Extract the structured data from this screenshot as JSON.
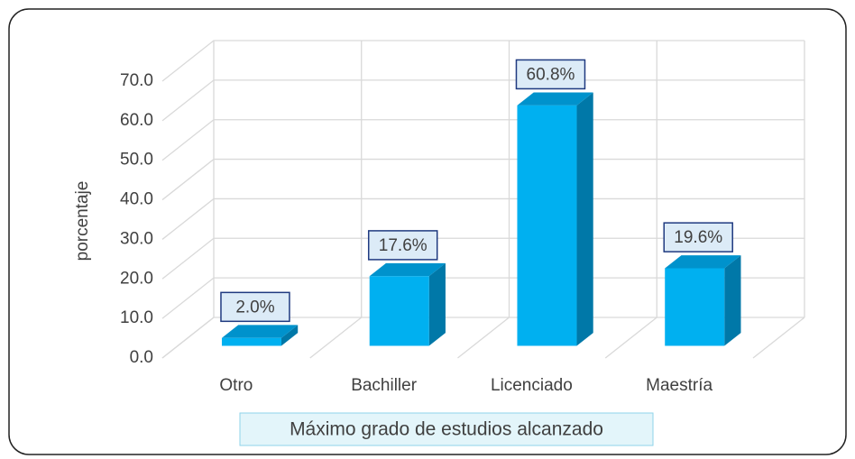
{
  "chart_data": {
    "type": "bar3d",
    "ylabel": "porcentaje",
    "xlabel": "Máximo grado de estudios alcanzado",
    "categories": [
      "Otro",
      "Bachiller",
      "Licenciado",
      "Maestría"
    ],
    "values": [
      2.0,
      17.6,
      60.8,
      19.6
    ],
    "value_labels": [
      "2.0%",
      "17.6%",
      "60.8%",
      "19.6%"
    ],
    "color": "#00b0f0",
    "ylim": [
      0,
      70
    ],
    "yticks": [
      {
        "value": 0,
        "label": "0.0"
      },
      {
        "value": 10,
        "label": "10.0"
      },
      {
        "value": 20,
        "label": "20.0"
      },
      {
        "value": 30,
        "label": "30.0"
      },
      {
        "value": 40,
        "label": "40.0"
      },
      {
        "value": 50,
        "label": "50.0"
      },
      {
        "value": 60,
        "label": "60.0"
      },
      {
        "value": 70,
        "label": "70.0"
      }
    ],
    "grid": true
  }
}
